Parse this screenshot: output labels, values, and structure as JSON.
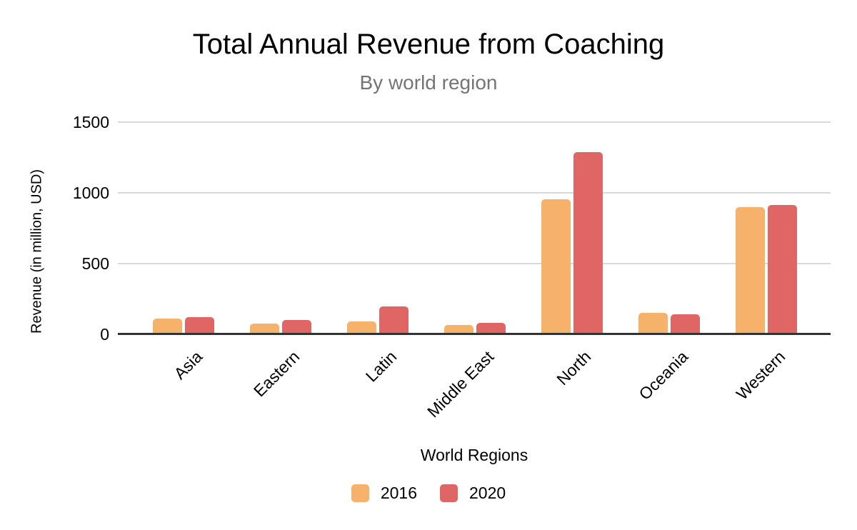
{
  "chart": {
    "title": "Total Annual Revenue from Coaching",
    "subtitle": "By world region"
  },
  "chart_data": {
    "type": "bar",
    "title": "Total Annual Revenue from Coaching",
    "subtitle": "By world region",
    "xlabel": "World Regions",
    "ylabel": "Revenue (in million, USD)",
    "categories": [
      "Asia",
      "Eastern",
      "Latin",
      "Middle East",
      "North",
      "Oceania",
      "Western"
    ],
    "series": [
      {
        "name": "2016",
        "color": "#F6B26B",
        "values": [
          113,
          74,
          90,
          66,
          955,
          151,
          898
        ]
      },
      {
        "name": "2020",
        "color": "#E06666",
        "values": [
          123,
          102,
          195,
          81,
          1288,
          141,
          914
        ]
      }
    ],
    "ylim": [
      0,
      1500
    ],
    "yticks": [
      0,
      500,
      1000,
      1500
    ],
    "grid": true,
    "legend_position": "bottom"
  },
  "legend": [
    {
      "label": "2016",
      "color": "#F6B26B"
    },
    {
      "label": "2020",
      "color": "#E06666"
    }
  ],
  "colors": {
    "background": "#FFFFFF",
    "title_text": "#000000",
    "subtitle_text": "#757575",
    "axis_text": "#000000",
    "gridline": "#D9D9D9",
    "axis_line": "#333333",
    "bar_2016": "#F6B26B",
    "bar_2020": "#E06666"
  }
}
